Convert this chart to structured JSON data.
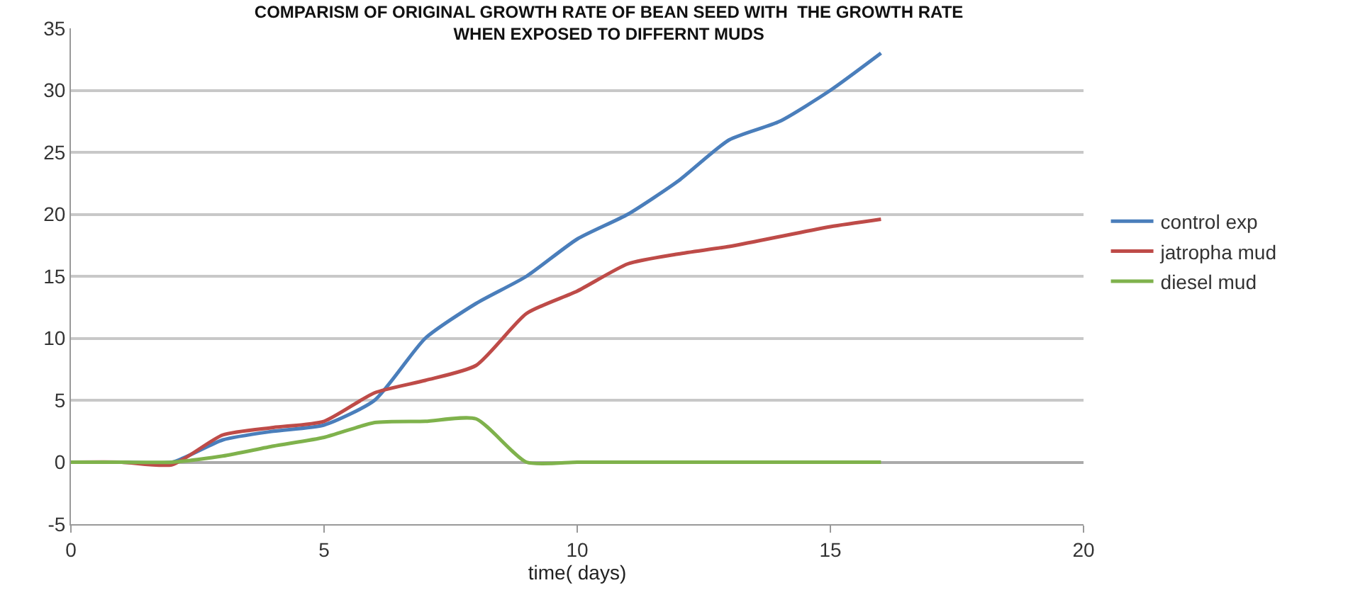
{
  "chart_data": {
    "type": "line",
    "title": "COMPARISM OF ORIGINAL GROWTH RATE OF BEAN SEED WITH  THE GROWTH RATE\nWHEN EXPOSED TO DIFFERNT MUDS",
    "xlabel": "time( days)",
    "x": [
      0,
      1,
      2,
      3,
      4,
      5,
      6,
      7,
      8,
      9,
      10,
      11,
      12,
      13,
      14,
      15,
      16
    ],
    "series": [
      {
        "name": "control exp",
        "color": "#4a7ebb",
        "values": [
          0,
          0,
          0,
          1.8,
          2.5,
          3,
          5,
          10,
          12.8,
          15,
          18,
          20,
          22.7,
          26,
          27.5,
          30,
          33
        ]
      },
      {
        "name": "jatropha mud",
        "color": "#be4b48",
        "values": [
          0,
          0,
          -0.2,
          2.2,
          2.8,
          3.3,
          5.6,
          6.6,
          7.8,
          12,
          13.8,
          16,
          16.8,
          17.4,
          18.2,
          19,
          19.6
        ]
      },
      {
        "name": "diesel mud",
        "color": "#7fb24c",
        "values": [
          0,
          0,
          0,
          0.5,
          1.3,
          2,
          3.2,
          3.3,
          3.5,
          0,
          0,
          0,
          0,
          0,
          0,
          0,
          0
        ]
      }
    ],
    "xlim": [
      0,
      20
    ],
    "xticks": [
      0,
      5,
      10,
      15,
      20
    ],
    "ylim": [
      -5,
      35
    ],
    "yticks": [
      -5,
      0,
      5,
      10,
      15,
      20,
      25,
      30,
      35
    ],
    "grid": "y",
    "legend": "right",
    "marker": "none",
    "line_style": "solid"
  }
}
